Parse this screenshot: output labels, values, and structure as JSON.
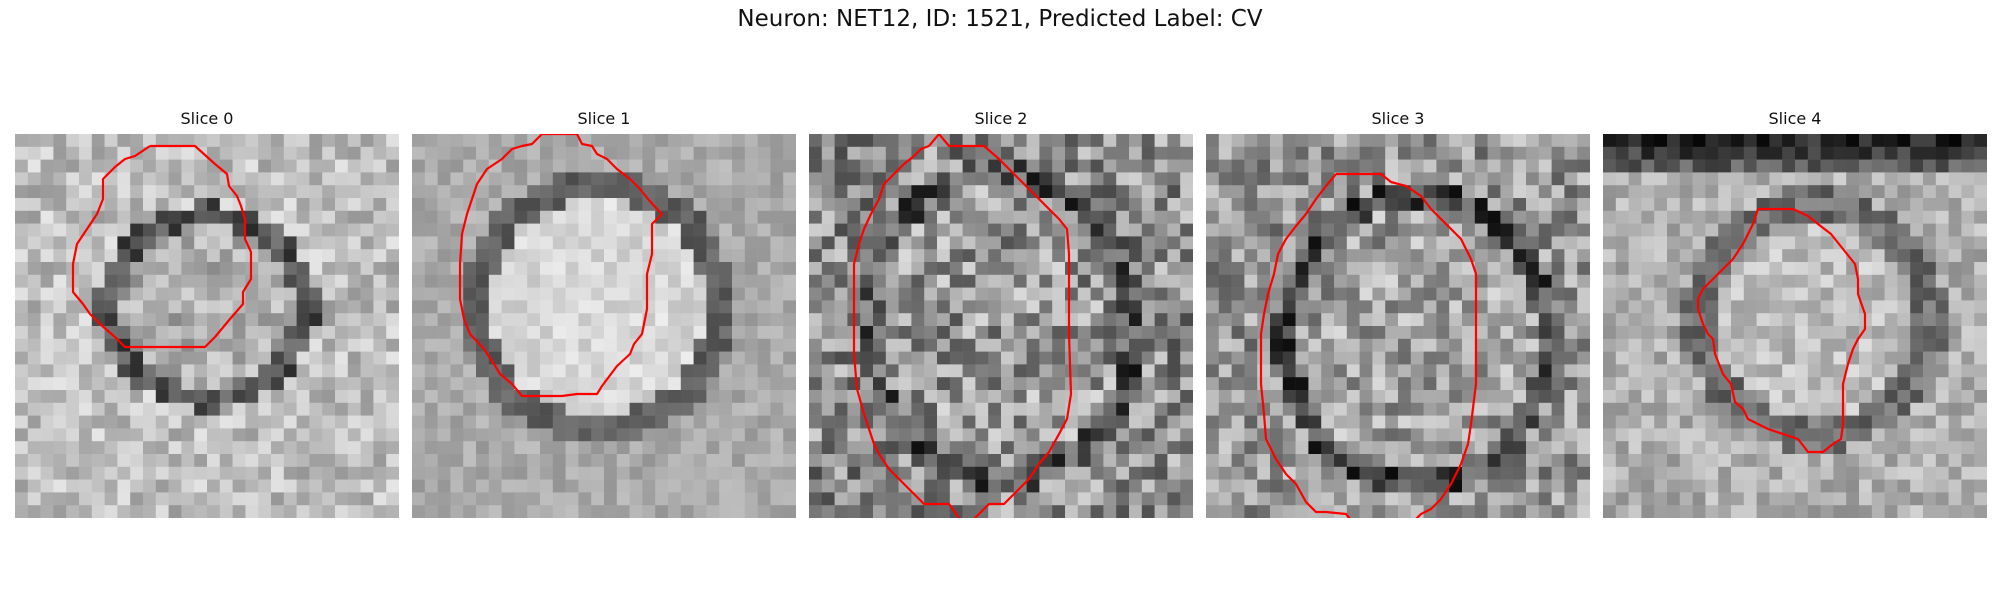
{
  "figure": {
    "title": "Neuron: NET12, ID: 1521, Predicted Label: CV"
  },
  "panels": [
    {
      "title": "Slice 0"
    },
    {
      "title": "Slice 1"
    },
    {
      "title": "Slice 2"
    },
    {
      "title": "Slice 3"
    },
    {
      "title": "Slice 4"
    }
  ],
  "colors": {
    "contour": "#ff0000",
    "colormap": "gray"
  }
}
